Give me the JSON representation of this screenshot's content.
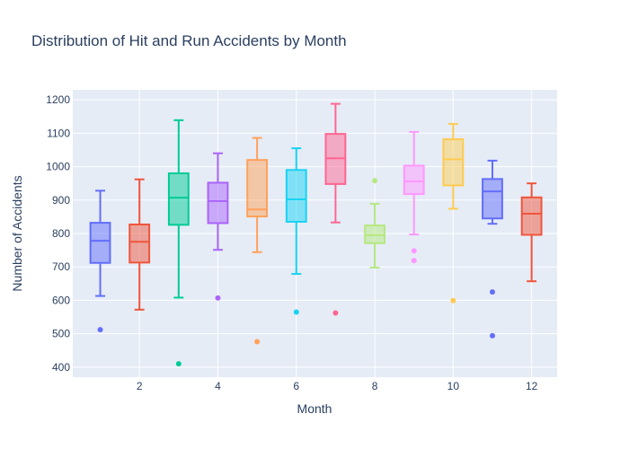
{
  "chart_data": {
    "type": "box",
    "title": "Distribution of Hit and Run Accidents by Month",
    "xlabel": "Month",
    "ylabel": "Number of Accidents",
    "xlim": [
      0.3,
      12.65
    ],
    "ylim": [
      370,
      1230
    ],
    "x_ticks": [
      2,
      4,
      6,
      8,
      10,
      12
    ],
    "y_ticks": [
      400,
      500,
      600,
      700,
      800,
      900,
      1000,
      1100,
      1200
    ],
    "grid": true,
    "legend": false,
    "background": "#e5ecf6",
    "boxes": [
      {
        "x": 1,
        "color": "#636efa",
        "min": 613,
        "q1": 712,
        "median": 778,
        "q3": 832,
        "max": 928,
        "outliers": [
          512
        ]
      },
      {
        "x": 2,
        "color": "#ef553b",
        "min": 572,
        "q1": 713,
        "median": 775,
        "q3": 827,
        "max": 962,
        "outliers": []
      },
      {
        "x": 3,
        "color": "#00cc96",
        "min": 608,
        "q1": 826,
        "median": 907,
        "q3": 980,
        "max": 1139,
        "outliers": [
          410
        ]
      },
      {
        "x": 4,
        "color": "#ab63fa",
        "min": 751,
        "q1": 831,
        "median": 897,
        "q3": 952,
        "max": 1040,
        "outliers": [
          607
        ]
      },
      {
        "x": 5,
        "color": "#ffa15a",
        "min": 744,
        "q1": 851,
        "median": 872,
        "q3": 1020,
        "max": 1086,
        "outliers": [
          476
        ]
      },
      {
        "x": 6,
        "color": "#19d3f3",
        "min": 679,
        "q1": 835,
        "median": 902,
        "q3": 990,
        "max": 1055,
        "outliers": [
          565
        ]
      },
      {
        "x": 7,
        "color": "#ff6692",
        "min": 833,
        "q1": 948,
        "median": 1025,
        "q3": 1098,
        "max": 1188,
        "outliers": [
          562
        ]
      },
      {
        "x": 8,
        "color": "#b6e880",
        "min": 698,
        "q1": 771,
        "median": 795,
        "q3": 824,
        "max": 889,
        "outliers": [
          958
        ]
      },
      {
        "x": 9,
        "color": "#ff97ff",
        "min": 797,
        "q1": 918,
        "median": 956,
        "q3": 1003,
        "max": 1104,
        "outliers": [
          748,
          719
        ]
      },
      {
        "x": 10,
        "color": "#fecb52",
        "min": 874,
        "q1": 944,
        "median": 1022,
        "q3": 1082,
        "max": 1128,
        "outliers": [
          599
        ]
      },
      {
        "x": 11,
        "color": "#636efa",
        "min": 829,
        "q1": 845,
        "median": 926,
        "q3": 963,
        "max": 1018,
        "outliers": [
          625,
          494
        ]
      },
      {
        "x": 12,
        "color": "#ef553b",
        "min": 657,
        "q1": 796,
        "median": 859,
        "q3": 908,
        "max": 950,
        "outliers": []
      }
    ]
  }
}
